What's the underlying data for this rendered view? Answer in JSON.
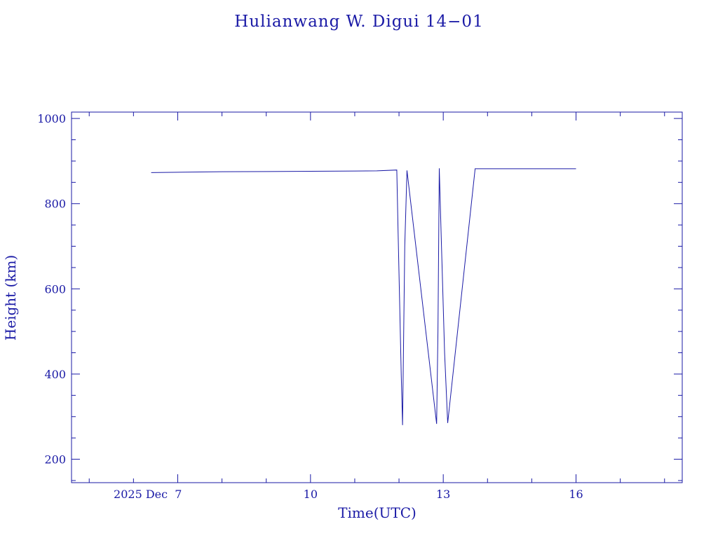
{
  "chart_data": {
    "type": "line",
    "title": "Hulianwang W. Digui 14−01",
    "xlabel": "Time(UTC)",
    "ylabel": "Height (km)",
    "x_unit": "days (2025 Dec)",
    "xlim": [
      4.6,
      18.4
    ],
    "ylim": [
      145,
      1015
    ],
    "x_ticks": [
      {
        "value": 7,
        "label": "2025 Dec  7"
      },
      {
        "value": 10,
        "label": "10"
      },
      {
        "value": 13,
        "label": "13"
      },
      {
        "value": 16,
        "label": "16"
      }
    ],
    "x_minor_step": 1,
    "y_ticks": [
      {
        "value": 200,
        "label": "200"
      },
      {
        "value": 400,
        "label": "400"
      },
      {
        "value": 600,
        "label": "600"
      },
      {
        "value": 800,
        "label": "800"
      },
      {
        "value": 1000,
        "label": "1000"
      }
    ],
    "y_minor_step": 50,
    "grid": false,
    "color": "#1a1aa6",
    "series": [
      {
        "x": [
          6.4,
          8.0,
          10.0,
          11.5,
          11.95,
          11.98,
          12.05,
          12.08,
          12.13,
          12.18,
          12.85,
          12.88,
          12.91,
          12.96,
          13.03,
          13.1,
          13.72,
          14.5,
          16.0
        ],
        "y": [
          873,
          875,
          876,
          877,
          879,
          730,
          400,
          280,
          700,
          878,
          283,
          500,
          883,
          700,
          450,
          285,
          882,
          882,
          882
        ]
      }
    ]
  }
}
